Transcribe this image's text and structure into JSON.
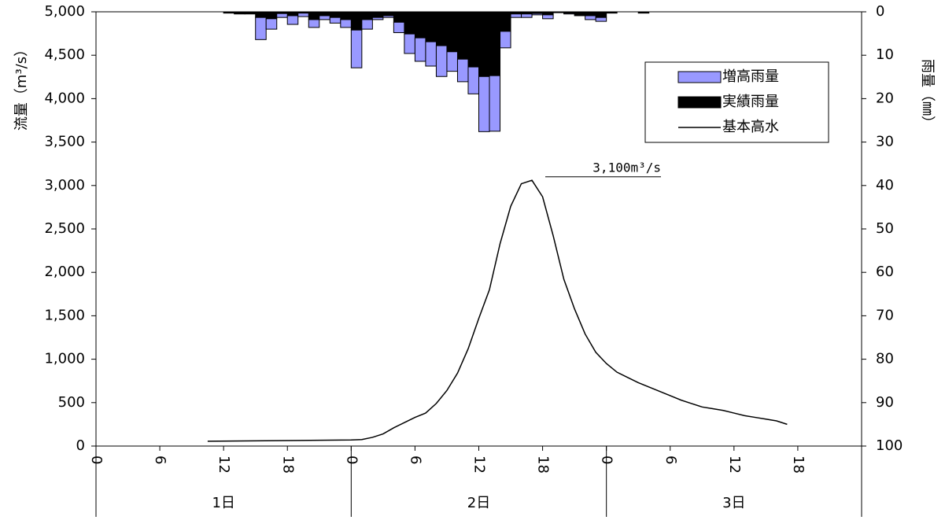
{
  "chart_data": {
    "type": "combo",
    "ylabel": "流量（m³/s）",
    "y2label": "雨量（㎜）",
    "xlim": [
      0,
      72
    ],
    "xticks": [
      {
        "value": 0,
        "label": "0"
      },
      {
        "value": 6,
        "label": "6"
      },
      {
        "value": 12,
        "label": "12"
      },
      {
        "value": 18,
        "label": "18"
      },
      {
        "value": 24,
        "label": "0"
      },
      {
        "value": 30,
        "label": "6"
      },
      {
        "value": 36,
        "label": "12"
      },
      {
        "value": 42,
        "label": "18"
      },
      {
        "value": 48,
        "label": "0"
      },
      {
        "value": 54,
        "label": "6"
      },
      {
        "value": 60,
        "label": "12"
      },
      {
        "value": 66,
        "label": "18"
      }
    ],
    "days": [
      "1日",
      "2日",
      "3日"
    ],
    "ylim": [
      0,
      5000
    ],
    "yticks": [
      0,
      500,
      {
        "value": 1000,
        "label": "1,000"
      },
      {
        "value": 1500,
        "label": "1,500"
      },
      {
        "value": 2000,
        "label": "2,000"
      },
      {
        "value": 2500,
        "label": "2,500"
      },
      {
        "value": 3000,
        "label": "3,000"
      },
      {
        "value": 3500,
        "label": "3,500"
      },
      {
        "value": 4000,
        "label": "4,000"
      },
      {
        "value": 4500,
        "label": "4,500"
      },
      {
        "value": 5000,
        "label": "5,000"
      }
    ],
    "y2lim": [
      100,
      0
    ],
    "y2ticks": [
      0,
      10,
      20,
      30,
      40,
      50,
      60,
      70,
      80,
      90,
      100
    ],
    "annotation": {
      "text": "3,100m³/s",
      "value": 3100
    },
    "series": [
      {
        "name": "増高雨量",
        "type": "bar",
        "axis": "y2",
        "color": "#9999ff",
        "x": [
          12,
          13,
          14,
          15,
          16,
          17,
          18,
          19,
          20,
          21,
          22,
          23,
          24,
          25,
          26,
          27,
          28,
          29,
          30,
          31,
          32,
          33,
          34,
          35,
          36,
          37,
          38,
          39,
          40,
          41,
          42,
          43,
          44,
          45,
          46,
          47,
          48,
          51
        ],
        "values": [
          0,
          0,
          0,
          5.1,
          2.4,
          0.9,
          2.0,
          0.8,
          1.8,
          0.9,
          1.3,
          1.8,
          8.7,
          2.2,
          0.5,
          0.4,
          2.4,
          4.5,
          5.4,
          5.6,
          7.1,
          4.5,
          5.2,
          6.2,
          12.7,
          12.8,
          3.8,
          0.8,
          0.8,
          0.3,
          0.9,
          0,
          0.2,
          0,
          0.9,
          0.9,
          0,
          0
        ]
      },
      {
        "name": "実績雨量",
        "type": "bar",
        "axis": "y2",
        "color": "#000000",
        "x": [
          12,
          13,
          14,
          15,
          16,
          17,
          18,
          19,
          20,
          21,
          22,
          23,
          24,
          25,
          26,
          27,
          28,
          29,
          30,
          31,
          32,
          33,
          34,
          35,
          36,
          37,
          38,
          39,
          40,
          41,
          42,
          43,
          44,
          45,
          46,
          47,
          48,
          51
        ],
        "values": [
          0.3,
          0.5,
          0.5,
          1.3,
          1.6,
          0.4,
          0.9,
          0.3,
          1.8,
          0.9,
          1.3,
          1.8,
          4.2,
          1.8,
          1.3,
          0.9,
          2.4,
          5.1,
          6.0,
          6.9,
          7.8,
          9.2,
          10.9,
          12.7,
          14.9,
          14.7,
          4.5,
          0.5,
          0.5,
          0.4,
          0.7,
          0.2,
          0.3,
          0.9,
          0.9,
          1.3,
          0.3,
          0.3
        ]
      },
      {
        "name": "基本高水",
        "type": "line",
        "color": "#000000",
        "x": [
          10.5,
          24,
          25,
          26,
          27,
          28,
          29,
          30,
          31,
          32,
          33,
          34,
          35,
          36,
          37,
          38,
          39,
          40,
          41,
          42,
          43,
          44,
          45,
          46,
          47,
          48,
          49,
          50,
          51,
          52,
          53,
          54,
          55,
          56,
          57,
          58,
          59,
          60,
          61,
          62,
          63,
          64,
          65
        ],
        "values": [
          55,
          70,
          75,
          100,
          140,
          210,
          270,
          330,
          380,
          490,
          640,
          840,
          1120,
          1470,
          1800,
          2330,
          2760,
          3020,
          3060,
          2870,
          2420,
          1920,
          1580,
          1290,
          1080,
          950,
          850,
          790,
          730,
          680,
          630,
          580,
          530,
          490,
          450,
          430,
          410,
          380,
          350,
          330,
          310,
          290,
          250
        ]
      }
    ]
  }
}
